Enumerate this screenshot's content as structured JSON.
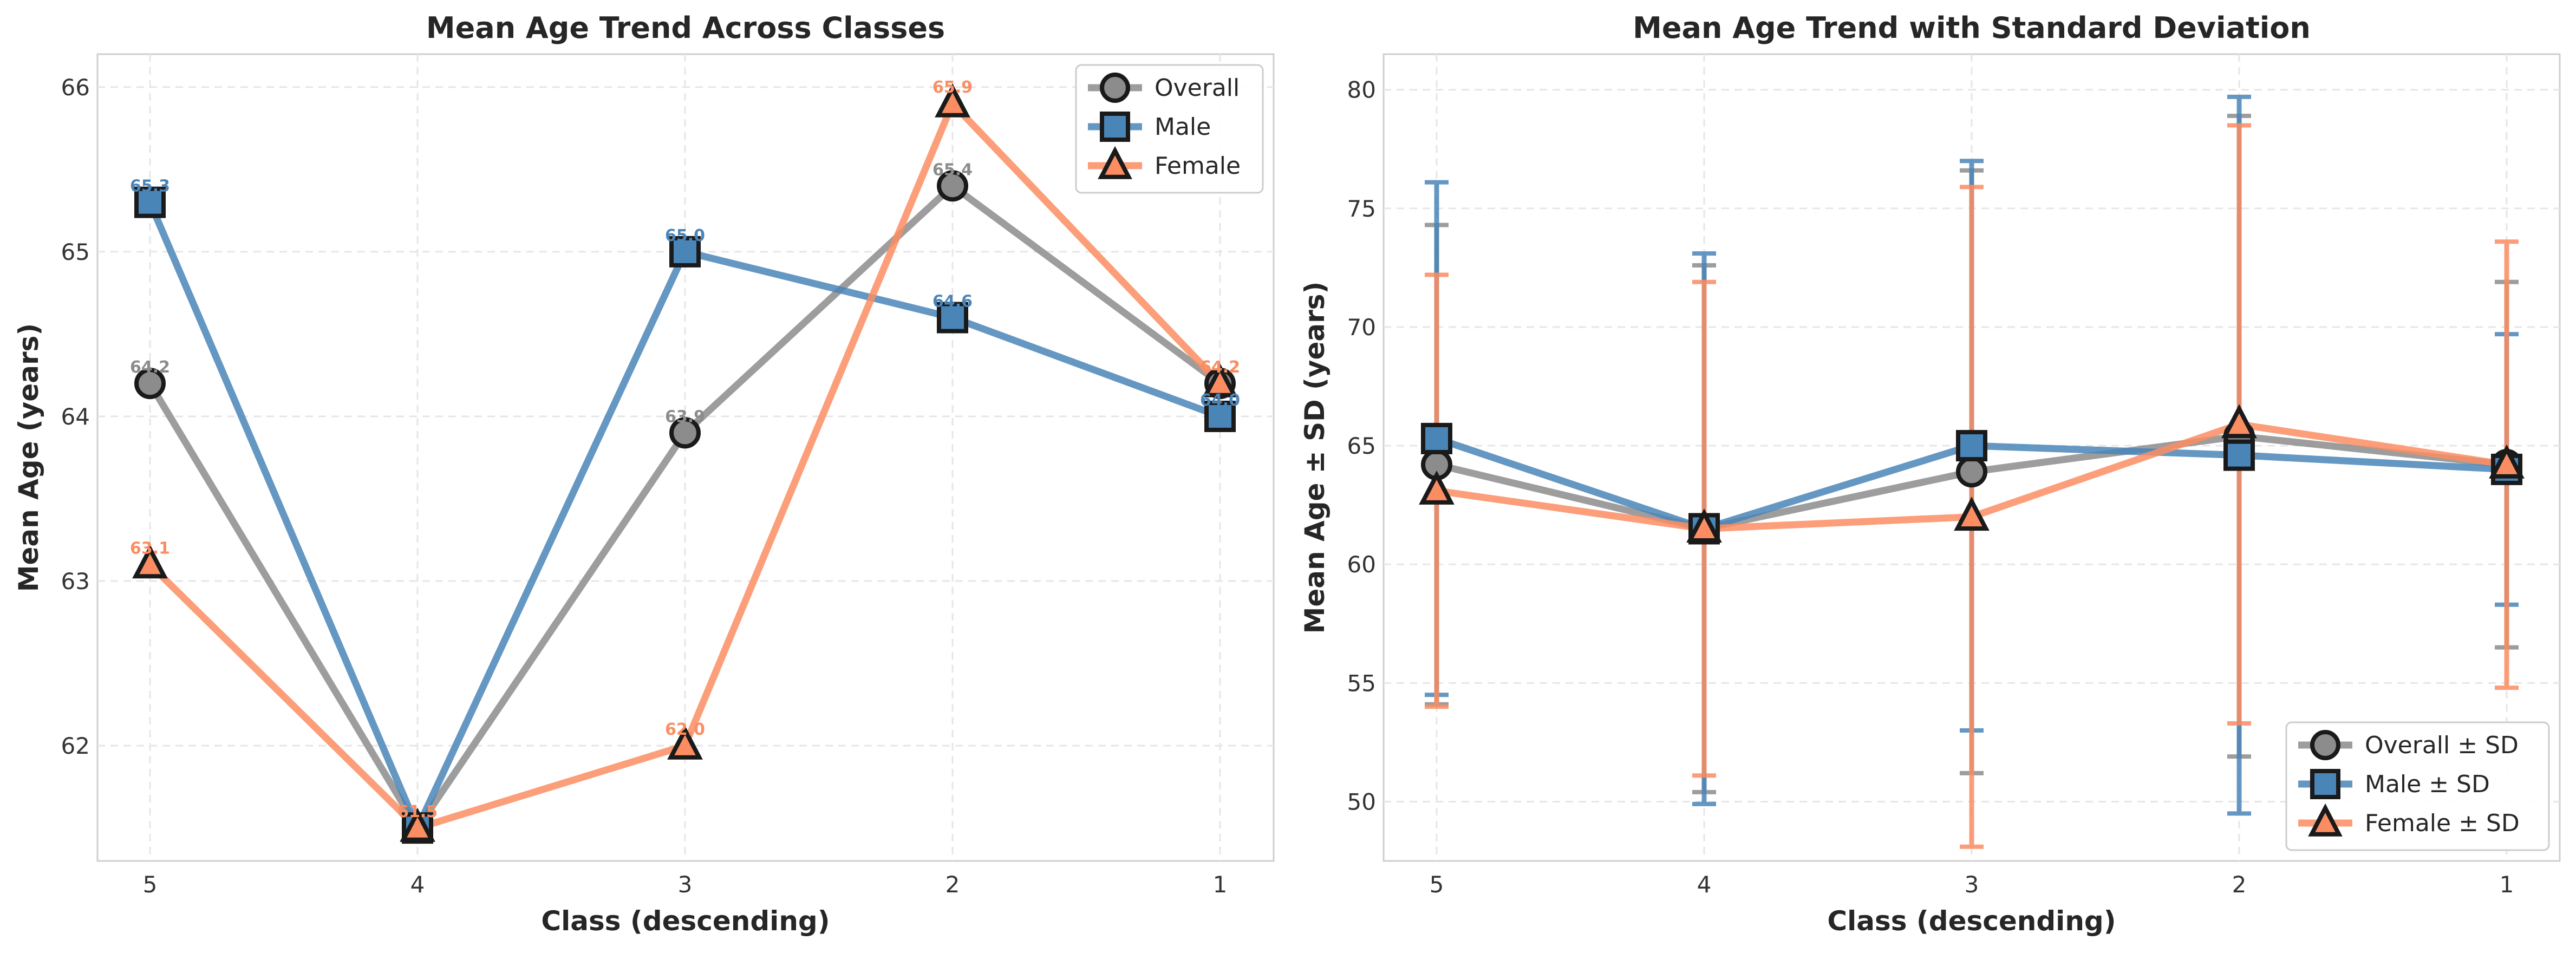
{
  "chart_data": [
    {
      "type": "line",
      "title": "Mean Age Trend Across Classes",
      "xlabel": "Class (descending)",
      "ylabel": "Mean Age (years)",
      "categories": [
        "5",
        "4",
        "3",
        "2",
        "1"
      ],
      "ylim": [
        61.3,
        66.2
      ],
      "yticks": [
        "62",
        "63",
        "64",
        "65",
        "66"
      ],
      "grid": true,
      "legend": "top-right",
      "data_labels": true,
      "series": [
        {
          "name": "Overall",
          "values": [
            64.2,
            61.5,
            63.9,
            65.4,
            64.2
          ],
          "color": "#8c8c8c",
          "marker": "circle",
          "labels": [
            "64.2",
            "61.5",
            "63.9",
            "65.4",
            "64.2"
          ]
        },
        {
          "name": "Male",
          "values": [
            65.3,
            61.5,
            65.0,
            64.6,
            64.0
          ],
          "color": "#4a85b8",
          "marker": "square",
          "labels": [
            "65.3",
            "61.5",
            "65.0",
            "64.6",
            "64.0"
          ]
        },
        {
          "name": "Female",
          "values": [
            63.1,
            61.5,
            62.0,
            65.9,
            64.2
          ],
          "color": "#fc8d62",
          "marker": "triangle",
          "labels": [
            "63.1",
            "61.5",
            "62.0",
            "65.9",
            "64.2"
          ]
        }
      ]
    },
    {
      "type": "line",
      "title": "Mean Age Trend with Standard Deviation",
      "xlabel": "Class (descending)",
      "ylabel": "Mean Age ± SD (years)",
      "categories": [
        "5",
        "4",
        "3",
        "2",
        "1"
      ],
      "ylim": [
        47.5,
        81.5
      ],
      "yticks": [
        "50",
        "55",
        "60",
        "65",
        "70",
        "75",
        "80"
      ],
      "grid": true,
      "legend": "bottom-right",
      "series": [
        {
          "name": "Overall ± SD",
          "values": [
            64.2,
            61.5,
            63.9,
            65.4,
            64.2
          ],
          "sd": [
            10.1,
            11.1,
            12.7,
            13.5,
            7.7
          ],
          "color": "#8c8c8c",
          "marker": "circle"
        },
        {
          "name": "Male ± SD",
          "values": [
            65.3,
            61.5,
            65.0,
            64.6,
            64.0
          ],
          "sd": [
            10.8,
            11.6,
            12.0,
            15.1,
            5.7
          ],
          "color": "#4a85b8",
          "marker": "square"
        },
        {
          "name": "Female ± SD",
          "values": [
            63.1,
            61.5,
            62.0,
            65.9,
            64.2
          ],
          "sd": [
            9.1,
            10.4,
            13.9,
            12.6,
            9.4
          ],
          "color": "#fc8d62",
          "marker": "triangle"
        }
      ]
    }
  ]
}
